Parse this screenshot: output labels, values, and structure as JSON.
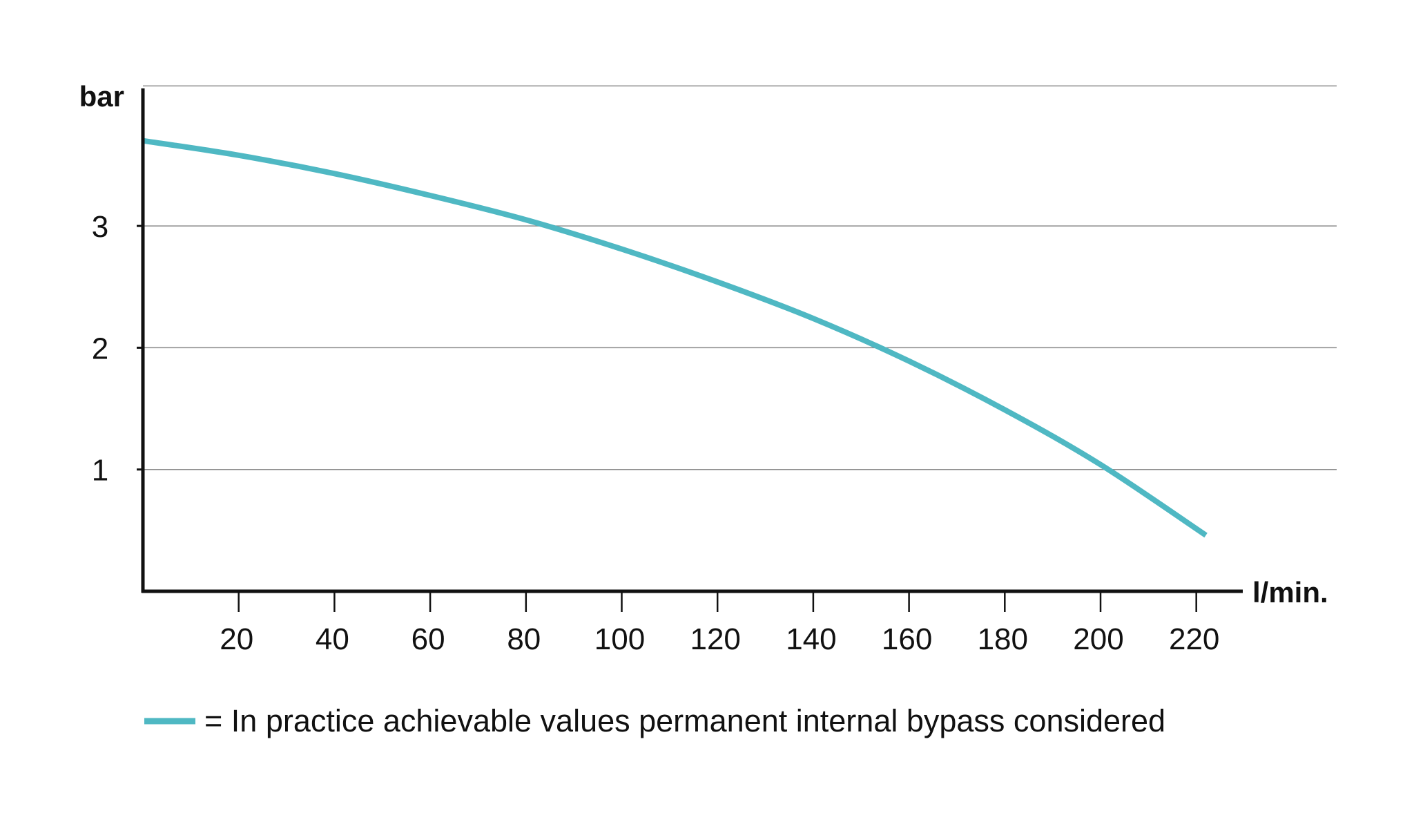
{
  "chart_data": {
    "type": "line",
    "ylabel": "bar",
    "xlabel": "l/min.",
    "xlim": [
      0,
      230
    ],
    "ylim": [
      0,
      4.15
    ],
    "x_ticks": [
      20,
      40,
      60,
      80,
      100,
      120,
      140,
      160,
      180,
      200,
      220
    ],
    "y_ticks": [
      1,
      2,
      3
    ],
    "grid": "horizontal",
    "series": [
      {
        "name": "= In practice achievable values permanent internal bypass considered",
        "color": "#4fb8c3",
        "x": [
          0,
          20,
          40,
          60,
          80,
          100,
          120,
          140,
          160,
          180,
          200,
          222
        ],
        "y": [
          3.7,
          3.58,
          3.43,
          3.25,
          3.05,
          2.81,
          2.54,
          2.24,
          1.89,
          1.49,
          1.04,
          0.46
        ]
      }
    ],
    "legend_position": "bottom-left"
  }
}
